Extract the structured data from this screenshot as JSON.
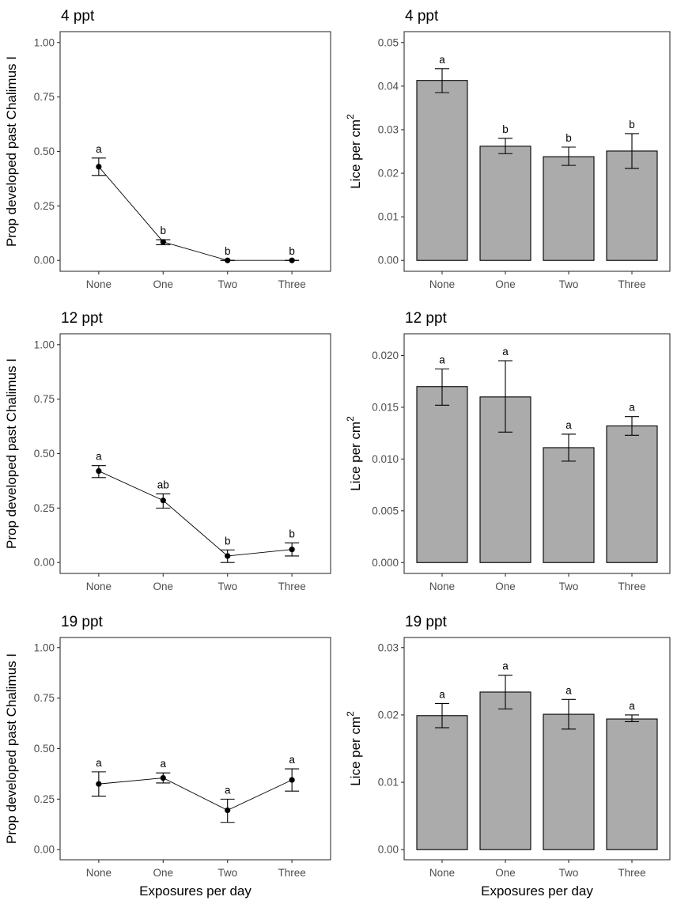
{
  "chart_data": [
    {
      "type": "line",
      "title": "4 ppt",
      "xlabel": "",
      "ylabel": "Prop developed past Chalimus I",
      "categories": [
        "None",
        "One",
        "Two",
        "Three"
      ],
      "values": [
        0.43,
        0.085,
        0.0,
        0.0
      ],
      "error_low": [
        0.39,
        0.072,
        0.0,
        0.0
      ],
      "error_high": [
        0.47,
        0.095,
        0.0,
        0.0
      ],
      "significance": [
        "a",
        "b",
        "b",
        "b"
      ],
      "yticks": [
        0.0,
        0.25,
        0.5,
        0.75,
        1.0
      ],
      "ytick_labels": [
        "0.00",
        "0.25",
        "0.50",
        "0.75",
        "1.00"
      ],
      "ylim": [
        -0.05,
        1.05
      ],
      "grid": false
    },
    {
      "type": "bar",
      "title": "4 ppt",
      "xlabel": "",
      "ylabel": "Lice per cm",
      "ylabel_superscript": "2",
      "categories": [
        "None",
        "One",
        "Two",
        "Three"
      ],
      "values": [
        0.0413,
        0.0262,
        0.0238,
        0.0251
      ],
      "error_low": [
        0.0385,
        0.0245,
        0.0218,
        0.0211
      ],
      "error_high": [
        0.044,
        0.028,
        0.026,
        0.0291
      ],
      "significance": [
        "a",
        "b",
        "b",
        "b"
      ],
      "yticks": [
        0.0,
        0.01,
        0.02,
        0.03,
        0.04,
        0.05
      ],
      "ytick_labels": [
        "0.00",
        "0.01",
        "0.02",
        "0.03",
        "0.04",
        "0.05"
      ],
      "ylim": [
        -0.0025,
        0.0525
      ],
      "bar_color": "#ababab",
      "grid": false
    },
    {
      "type": "line",
      "title": "12 ppt",
      "xlabel": "",
      "ylabel": "Prop developed past Chalimus I",
      "categories": [
        "None",
        "One",
        "Two",
        "Three"
      ],
      "values": [
        0.42,
        0.285,
        0.03,
        0.06
      ],
      "error_low": [
        0.39,
        0.25,
        0.0,
        0.03
      ],
      "error_high": [
        0.445,
        0.315,
        0.058,
        0.09
      ],
      "significance": [
        "a",
        "ab",
        "b",
        "b"
      ],
      "yticks": [
        0.0,
        0.25,
        0.5,
        0.75,
        1.0
      ],
      "ytick_labels": [
        "0.00",
        "0.25",
        "0.50",
        "0.75",
        "1.00"
      ],
      "ylim": [
        -0.05,
        1.05
      ],
      "grid": false
    },
    {
      "type": "bar",
      "title": "12 ppt",
      "xlabel": "",
      "ylabel": "Lice per cm",
      "ylabel_superscript": "2",
      "categories": [
        "None",
        "One",
        "Two",
        "Three"
      ],
      "values": [
        0.017,
        0.016,
        0.0111,
        0.0132
      ],
      "error_low": [
        0.0152,
        0.0126,
        0.0098,
        0.0123
      ],
      "error_high": [
        0.0187,
        0.0195,
        0.0124,
        0.0141
      ],
      "significance": [
        "a",
        "a",
        "a",
        "a"
      ],
      "yticks": [
        0.0,
        0.005,
        0.01,
        0.015,
        0.02
      ],
      "ytick_labels": [
        "0.000",
        "0.005",
        "0.010",
        "0.015",
        "0.020"
      ],
      "ylim": [
        -0.00105,
        0.0221
      ],
      "bar_color": "#ababab",
      "grid": false
    },
    {
      "type": "line",
      "title": "19 ppt",
      "xlabel": "Exposures per day",
      "ylabel": "Prop developed past Chalimus I",
      "categories": [
        "None",
        "One",
        "Two",
        "Three"
      ],
      "values": [
        0.325,
        0.355,
        0.195,
        0.345
      ],
      "error_low": [
        0.265,
        0.33,
        0.135,
        0.29
      ],
      "error_high": [
        0.385,
        0.38,
        0.25,
        0.4
      ],
      "significance": [
        "a",
        "a",
        "a",
        "a"
      ],
      "yticks": [
        0.0,
        0.25,
        0.5,
        0.75,
        1.0
      ],
      "ytick_labels": [
        "0.00",
        "0.25",
        "0.50",
        "0.75",
        "1.00"
      ],
      "ylim": [
        -0.05,
        1.05
      ],
      "grid": false
    },
    {
      "type": "bar",
      "title": "19 ppt",
      "xlabel": "Exposures per day",
      "ylabel": "Lice per cm",
      "ylabel_superscript": "2",
      "categories": [
        "None",
        "One",
        "Two",
        "Three"
      ],
      "values": [
        0.0199,
        0.0234,
        0.0201,
        0.0194
      ],
      "error_low": [
        0.0181,
        0.0209,
        0.0179,
        0.019
      ],
      "error_high": [
        0.0217,
        0.0259,
        0.0223,
        0.02
      ],
      "significance": [
        "a",
        "a",
        "a",
        "a"
      ],
      "yticks": [
        0.0,
        0.01,
        0.02,
        0.03
      ],
      "ytick_labels": [
        "0.00",
        "0.01",
        "0.02",
        "0.03"
      ],
      "ylim": [
        -0.0015,
        0.0315
      ],
      "bar_color": "#ababab",
      "grid": false
    }
  ]
}
